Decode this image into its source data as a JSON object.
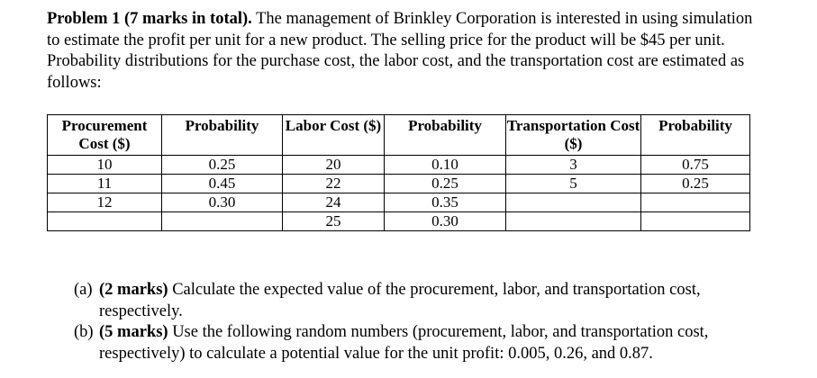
{
  "problem": {
    "heading": "Problem 1 (7 marks in total).",
    "body": "The management of Brinkley Corporation is interested in using simulation to estimate the profit per unit for a new product. The selling price for the product will be $45 per unit. Probability distributions for the purchase cost, the labor cost, and the transportation cost are estimated as follows:"
  },
  "table": {
    "headers": [
      "Procurement Cost ($)",
      "Probability",
      "Labor Cost ($)",
      "Probability",
      "Transportation Cost ($)",
      "Probability"
    ],
    "rows": [
      [
        "10",
        "0.25",
        "20",
        "0.10",
        "3",
        "0.75"
      ],
      [
        "11",
        "0.45",
        "22",
        "0.25",
        "5",
        "0.25"
      ],
      [
        "12",
        "0.30",
        "24",
        "0.35",
        "",
        ""
      ],
      [
        "",
        "",
        "25",
        "0.30",
        "",
        ""
      ]
    ]
  },
  "questions": [
    {
      "label": "(a)",
      "marks": "(2 marks)",
      "text": "Calculate the expected value of the procurement, labor, and transportation cost, respectively."
    },
    {
      "label": "(b)",
      "marks": "(5 marks)",
      "text": "Use the following random numbers (procurement, labor, and transportation cost, respectively) to calculate a potential value for the unit profit: 0.005, 0.26, and 0.87."
    }
  ]
}
